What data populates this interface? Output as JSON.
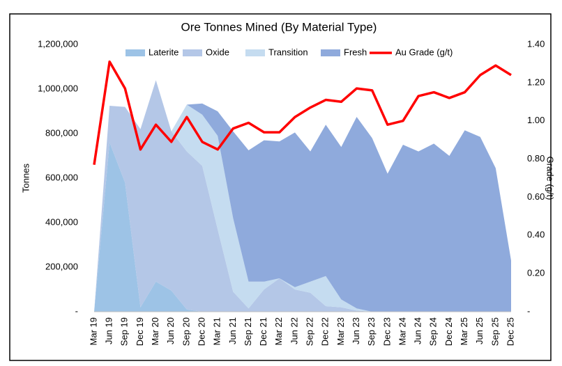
{
  "chart_data": {
    "type": "stacked-area-line",
    "title": "Ore Tonnes Mined (By Material Type)",
    "y_label": "Tonnes",
    "y2_label": "Grade (g/t)",
    "categories": [
      "Mar 19",
      "Jun 19",
      "Sep 19",
      "Dec 19",
      "Mar 20",
      "Jun 20",
      "Sep 20",
      "Dec 20",
      "Mar 21",
      "Jun 21",
      "Sep 21",
      "Dec 21",
      "Mar 22",
      "Jun 22",
      "Sep 22",
      "Dec 22",
      "Mar 23",
      "Jun 23",
      "Sep 23",
      "Dec 23",
      "Mar 24",
      "Jun 24",
      "Sep 24",
      "Dec 24",
      "Mar 25",
      "Jun 25",
      "Sep 25",
      "Dec 25"
    ],
    "series": [
      {
        "name": "Laterite",
        "color": "#9dc3e6",
        "values": [
          0,
          760000,
          580000,
          20000,
          135000,
          95000,
          10000,
          0,
          0,
          0,
          0,
          0,
          0,
          0,
          0,
          0,
          0,
          0,
          0,
          0,
          0,
          0,
          0,
          0,
          0,
          0,
          0,
          0
        ]
      },
      {
        "name": "Oxide",
        "color": "#b4c7e7",
        "values": [
          0,
          165000,
          340000,
          800000,
          905000,
          715000,
          710000,
          655000,
          370000,
          90000,
          15000,
          100000,
          150000,
          100000,
          85000,
          25000,
          20000,
          5000,
          0,
          0,
          0,
          0,
          0,
          0,
          0,
          0,
          0,
          0
        ]
      },
      {
        "name": "Transition",
        "color": "#c5dcf0",
        "values": [
          0,
          0,
          0,
          0,
          0,
          0,
          210000,
          230000,
          420000,
          330000,
          120000,
          35000,
          0,
          10000,
          50000,
          135000,
          35000,
          10000,
          0,
          0,
          0,
          0,
          0,
          0,
          0,
          0,
          0,
          0
        ]
      },
      {
        "name": "Fresh",
        "color": "#8faadc",
        "values": [
          0,
          0,
          0,
          0,
          0,
          0,
          0,
          50000,
          110000,
          390000,
          590000,
          635000,
          615000,
          695000,
          585000,
          680000,
          685000,
          860000,
          780000,
          620000,
          750000,
          720000,
          755000,
          700000,
          815000,
          785000,
          645000,
          230000
        ]
      },
      {
        "name": "Au Grade (g/t)",
        "color": "#ff0000",
        "axis": "y2",
        "values": [
          0.77,
          1.31,
          1.17,
          0.85,
          0.98,
          0.89,
          1.02,
          0.89,
          0.85,
          0.96,
          0.99,
          0.94,
          0.94,
          1.02,
          1.07,
          1.11,
          1.1,
          1.17,
          1.16,
          0.98,
          1.0,
          1.13,
          1.15,
          1.12,
          1.15,
          1.24,
          1.29,
          1.24
        ]
      }
    ],
    "ylim": [
      0,
      1200000
    ],
    "yticks": [
      {
        "value": 0,
        "label": "-"
      },
      {
        "value": 200000,
        "label": "200,000"
      },
      {
        "value": 400000,
        "label": "400,000"
      },
      {
        "value": 600000,
        "label": "600,000"
      },
      {
        "value": 800000,
        "label": "800,000"
      },
      {
        "value": 1000000,
        "label": "1,000,000"
      },
      {
        "value": 1200000,
        "label": "1,200,000"
      }
    ],
    "y2lim": [
      0,
      1.4
    ],
    "y2ticks": [
      {
        "value": 0,
        "label": "-"
      },
      {
        "value": 0.2,
        "label": "0.20"
      },
      {
        "value": 0.4,
        "label": "0.40"
      },
      {
        "value": 0.6,
        "label": "0.60"
      },
      {
        "value": 0.8,
        "label": "0.80"
      },
      {
        "value": 1.0,
        "label": "1.00"
      },
      {
        "value": 1.2,
        "label": "1.20"
      },
      {
        "value": 1.4,
        "label": "1.40"
      }
    ]
  }
}
